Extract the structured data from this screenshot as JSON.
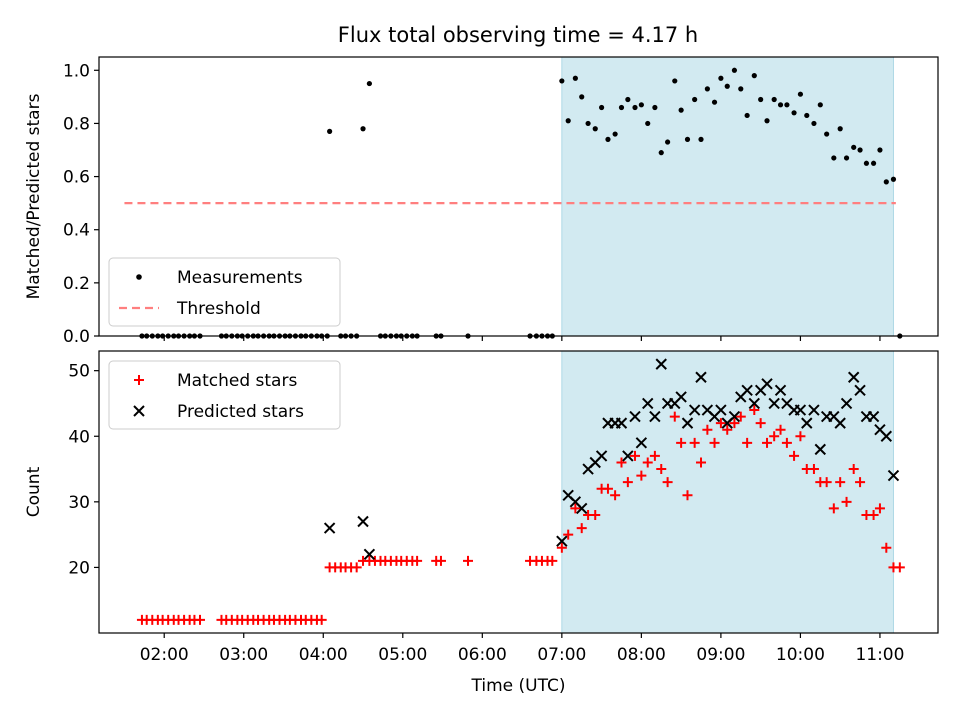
{
  "title": "Flux total observing time = 4.17 h",
  "colors": {
    "measurement": "#000000",
    "threshold": "#ff7f7f",
    "matched": "#ff0000",
    "predicted": "#000000",
    "highlight": "#add8e6"
  },
  "chart_data": [
    {
      "type": "scatter",
      "panel": "top",
      "ylabel": "Matched/Predicted stars",
      "ylim": [
        0,
        1.05
      ],
      "yticks": [
        "0.0",
        "0.2",
        "0.4",
        "0.6",
        "0.8",
        "1.0"
      ],
      "ytick_values": [
        0,
        0.2,
        0.4,
        0.6,
        0.8,
        1.0
      ],
      "xlim": [
        1.18,
        11.73
      ],
      "xticks": [
        "02:00",
        "03:00",
        "04:00",
        "05:00",
        "06:00",
        "07:00",
        "08:00",
        "09:00",
        "10:00",
        "11:00"
      ],
      "xtick_values": [
        2,
        3,
        4,
        5,
        6,
        7,
        8,
        9,
        10,
        11
      ],
      "highlight_span": [
        7.0,
        11.17
      ],
      "legend": {
        "placement": "lower-left",
        "entries": [
          "Measurements",
          "Threshold"
        ]
      },
      "threshold": {
        "name": "Threshold",
        "value": 0.5,
        "x_range": [
          1.5,
          11.2
        ]
      },
      "series": [
        {
          "name": "Measurements",
          "marker": "dot",
          "x": [
            1.72,
            1.78,
            1.85,
            1.92,
            1.98,
            2.05,
            2.12,
            2.18,
            2.25,
            2.32,
            2.38,
            2.45,
            2.72,
            2.78,
            2.85,
            2.92,
            2.98,
            3.05,
            3.12,
            3.18,
            3.25,
            3.32,
            3.38,
            3.45,
            3.52,
            3.58,
            3.65,
            3.72,
            3.78,
            3.85,
            3.92,
            3.98,
            4.05,
            4.08,
            4.22,
            4.28,
            4.35,
            4.42,
            4.5,
            4.58,
            4.72,
            4.78,
            4.85,
            4.92,
            4.98,
            5.05,
            5.12,
            5.18,
            5.42,
            5.48,
            5.82,
            6.6,
            6.68,
            6.75,
            6.82,
            6.88,
            7.0,
            7.08,
            7.17,
            7.25,
            7.33,
            7.42,
            7.5,
            7.58,
            7.67,
            7.75,
            7.83,
            7.92,
            8.0,
            8.08,
            8.17,
            8.25,
            8.33,
            8.42,
            8.5,
            8.58,
            8.67,
            8.75,
            8.83,
            8.92,
            9.0,
            9.08,
            9.17,
            9.25,
            9.33,
            9.42,
            9.5,
            9.58,
            9.67,
            9.75,
            9.83,
            9.92,
            10.0,
            10.08,
            10.17,
            10.25,
            10.33,
            10.42,
            10.5,
            10.58,
            10.67,
            10.75,
            10.83,
            10.92,
            11.0,
            11.08,
            11.17,
            11.25
          ],
          "y": [
            0,
            0,
            0,
            0,
            0,
            0,
            0,
            0,
            0,
            0,
            0,
            0,
            0,
            0,
            0,
            0,
            0,
            0,
            0,
            0,
            0,
            0,
            0,
            0,
            0,
            0,
            0,
            0,
            0,
            0,
            0,
            0,
            0,
            0.77,
            0,
            0,
            0,
            0,
            0.78,
            0.95,
            0,
            0,
            0,
            0,
            0,
            0,
            0,
            0,
            0,
            0,
            0,
            0,
            0,
            0,
            0,
            0,
            0.96,
            0.81,
            0.97,
            0.9,
            0.8,
            0.78,
            0.86,
            0.74,
            0.76,
            0.86,
            0.89,
            0.86,
            0.87,
            0.8,
            0.86,
            0.69,
            0.73,
            0.96,
            0.85,
            0.74,
            0.89,
            0.74,
            0.93,
            0.88,
            0.97,
            0.94,
            1.0,
            0.93,
            0.83,
            0.98,
            0.89,
            0.81,
            0.89,
            0.87,
            0.87,
            0.84,
            0.91,
            0.83,
            0.8,
            0.87,
            0.76,
            0.67,
            0.78,
            0.67,
            0.71,
            0.7,
            0.65,
            0.65,
            0.7,
            0.58,
            0.59,
            0
          ]
        }
      ]
    },
    {
      "type": "scatter",
      "panel": "bottom",
      "xlabel": "Time (UTC)",
      "ylabel": "Count",
      "ylim": [
        10,
        53
      ],
      "yticks": [
        "20",
        "30",
        "40",
        "50"
      ],
      "ytick_values": [
        20,
        30,
        40,
        50
      ],
      "xlim": [
        1.18,
        11.73
      ],
      "xticks": [
        "02:00",
        "03:00",
        "04:00",
        "05:00",
        "06:00",
        "07:00",
        "08:00",
        "09:00",
        "10:00",
        "11:00"
      ],
      "xtick_values": [
        2,
        3,
        4,
        5,
        6,
        7,
        8,
        9,
        10,
        11
      ],
      "highlight_span": [
        7.0,
        11.17
      ],
      "legend": {
        "placement": "upper-left",
        "entries": [
          "Matched stars",
          "Predicted stars"
        ]
      },
      "series": [
        {
          "name": "Matched stars",
          "marker": "plus",
          "x": [
            1.72,
            1.78,
            1.85,
            1.92,
            1.98,
            2.05,
            2.12,
            2.18,
            2.25,
            2.32,
            2.38,
            2.45,
            2.72,
            2.78,
            2.85,
            2.92,
            2.98,
            3.05,
            3.12,
            3.18,
            3.25,
            3.32,
            3.38,
            3.45,
            3.52,
            3.58,
            3.65,
            3.72,
            3.78,
            3.85,
            3.92,
            3.98,
            4.08,
            4.15,
            4.22,
            4.28,
            4.35,
            4.42,
            4.5,
            4.58,
            4.65,
            4.72,
            4.78,
            4.85,
            4.92,
            4.98,
            5.05,
            5.12,
            5.18,
            5.42,
            5.48,
            5.82,
            6.6,
            6.68,
            6.75,
            6.82,
            6.88,
            7.0,
            7.08,
            7.17,
            7.25,
            7.33,
            7.42,
            7.5,
            7.58,
            7.67,
            7.75,
            7.83,
            7.92,
            8.0,
            8.08,
            8.17,
            8.25,
            8.33,
            8.42,
            8.5,
            8.58,
            8.67,
            8.75,
            8.83,
            8.92,
            9.0,
            9.08,
            9.17,
            9.25,
            9.33,
            9.42,
            9.5,
            9.58,
            9.67,
            9.75,
            9.83,
            9.92,
            10.0,
            10.08,
            10.17,
            10.25,
            10.33,
            10.42,
            10.5,
            10.58,
            10.67,
            10.75,
            10.83,
            10.92,
            11.0,
            11.08,
            11.17,
            11.25
          ],
          "y": [
            12,
            12,
            12,
            12,
            12,
            12,
            12,
            12,
            12,
            12,
            12,
            12,
            12,
            12,
            12,
            12,
            12,
            12,
            12,
            12,
            12,
            12,
            12,
            12,
            12,
            12,
            12,
            12,
            12,
            12,
            12,
            12,
            20,
            20,
            20,
            20,
            20,
            20,
            21,
            21,
            21,
            21,
            21,
            21,
            21,
            21,
            21,
            21,
            21,
            21,
            21,
            21,
            21,
            21,
            21,
            21,
            21,
            23,
            25,
            29,
            26,
            28,
            28,
            32,
            32,
            31,
            36,
            33,
            37,
            34,
            36,
            37,
            35,
            33,
            43,
            39,
            31,
            39,
            36,
            41,
            39,
            42,
            41,
            42,
            43,
            39,
            44,
            42,
            39,
            40,
            41,
            39,
            37,
            40,
            35,
            35,
            33,
            33,
            29,
            33,
            30,
            35,
            33,
            28,
            28,
            29,
            23,
            20,
            20
          ]
        },
        {
          "name": "Predicted stars",
          "marker": "x",
          "x": [
            4.08,
            4.5,
            4.58,
            7.0,
            7.08,
            7.17,
            7.25,
            7.33,
            7.42,
            7.5,
            7.58,
            7.67,
            7.75,
            7.83,
            7.92,
            8.0,
            8.08,
            8.17,
            8.25,
            8.33,
            8.42,
            8.5,
            8.58,
            8.67,
            8.75,
            8.83,
            8.92,
            9.0,
            9.08,
            9.17,
            9.25,
            9.33,
            9.42,
            9.5,
            9.58,
            9.67,
            9.75,
            9.83,
            9.92,
            10.0,
            10.08,
            10.17,
            10.25,
            10.33,
            10.42,
            10.5,
            10.58,
            10.67,
            10.75,
            10.83,
            10.92,
            11.0,
            11.08,
            11.17
          ],
          "y": [
            26,
            27,
            22,
            24,
            31,
            30,
            29,
            35,
            36,
            37,
            42,
            42,
            42,
            37,
            43,
            39,
            45,
            43,
            51,
            45,
            45,
            46,
            42,
            44,
            49,
            44,
            43,
            44,
            42,
            43,
            46,
            47,
            45,
            47,
            48,
            45,
            47,
            45,
            44,
            44,
            42,
            44,
            38,
            43,
            43,
            42,
            45,
            49,
            47,
            43,
            43,
            41,
            40,
            34
          ]
        }
      ]
    }
  ]
}
